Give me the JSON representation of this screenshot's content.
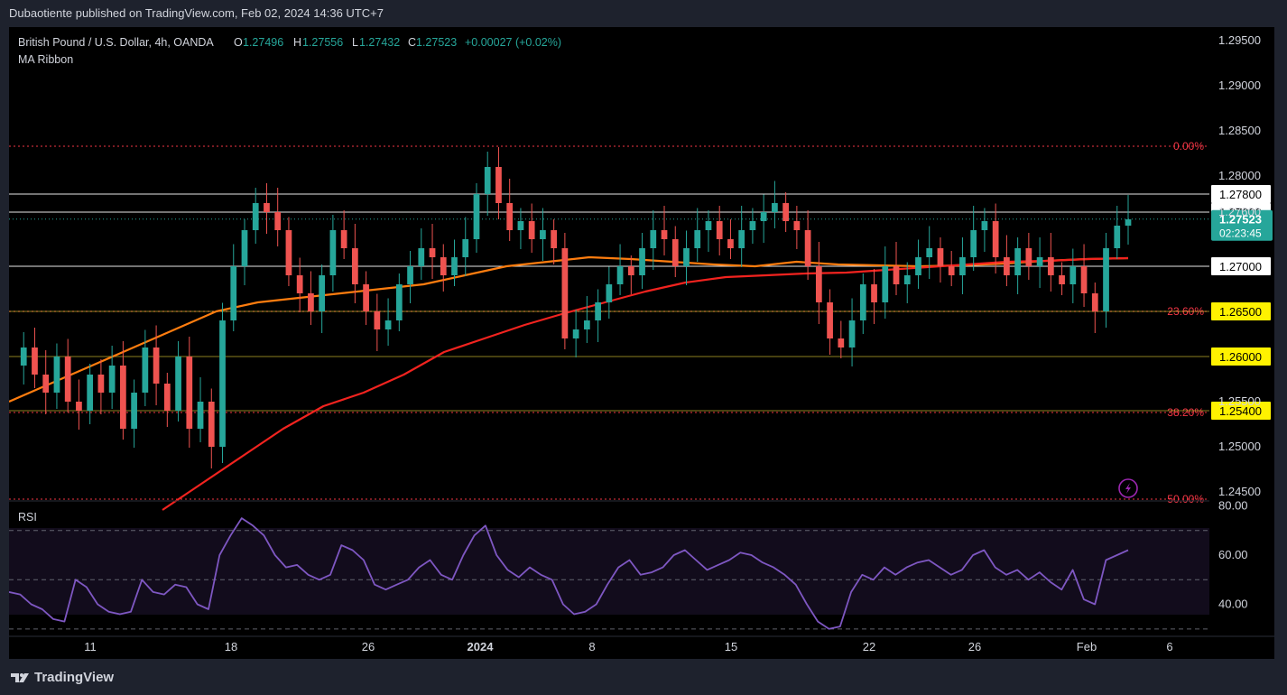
{
  "header": {
    "published_text": "Dubaotiente published on TradingView.com, Feb 02, 2024 14:36 UTC+7"
  },
  "legend": {
    "symbol": "British Pound / U.S. Dollar, 4h, OANDA",
    "o_label": "O",
    "o_value": "1.27496",
    "h_label": "H",
    "h_value": "1.27556",
    "l_label": "L",
    "l_value": "1.27432",
    "c_label": "C",
    "c_value": "1.27523",
    "change": "+0.00027 (+0.02%)",
    "indicator": "MA Ribbon"
  },
  "rsi_label": "RSI",
  "footer": {
    "brand": "TradingView"
  },
  "colors": {
    "up": "#26a69a",
    "down": "#ef5350",
    "ma_fast": "#ff7d0f",
    "ma_slow": "#f2231f",
    "rsi": "#7e57c2",
    "fib": "#f23645",
    "price_badge": "#26a69a"
  },
  "chart_data": [
    {
      "type": "candlestick",
      "title": "British Pound / U.S. Dollar, 4h, OANDA",
      "x_ticks": [
        "11",
        "18",
        "26",
        "2024",
        "8",
        "15",
        "22",
        "26",
        "Feb",
        "6"
      ],
      "y_ticks": [
        "1.29500",
        "1.29000",
        "1.28500",
        "1.28000",
        "1.27600",
        "1.25500",
        "1.25000",
        "1.24500"
      ],
      "ylim": [
        1.244,
        1.2965
      ],
      "horizontal_levels": [
        {
          "value": 1.278,
          "label": "1.27800",
          "style": "white-box"
        },
        {
          "value": 1.276,
          "label": "1.27600",
          "style": "white-box"
        },
        {
          "value": 1.27,
          "label": "1.27000",
          "style": "white-box"
        },
        {
          "value": 1.265,
          "label": "1.26500",
          "style": "yellow-box"
        },
        {
          "value": 1.26,
          "label": "1.26000",
          "style": "yellow-box"
        },
        {
          "value": 1.254,
          "label": "1.25400",
          "style": "yellow-box"
        }
      ],
      "fib_levels": [
        {
          "value": 1.2833,
          "label": "0.00%"
        },
        {
          "value": 1.265,
          "label": "23.60%"
        },
        {
          "value": 1.2538,
          "label": "38.20%"
        },
        {
          "value": 1.2442,
          "label": "50.00%"
        }
      ],
      "last_price": {
        "value": 1.27523,
        "label": "1.27523",
        "countdown": "02:23:45"
      },
      "series": [
        {
          "name": "price_path",
          "values": [
            1.259,
            1.261,
            1.258,
            1.256,
            1.26,
            1.255,
            1.254,
            1.258,
            1.256,
            1.259,
            1.252,
            1.256,
            1.261,
            1.257,
            1.254,
            1.26,
            1.252,
            1.255,
            1.25,
            1.264,
            1.27,
            1.274,
            1.277,
            1.276,
            1.274,
            1.269,
            1.267,
            1.265,
            1.269,
            1.274,
            1.272,
            1.268,
            1.265,
            1.263,
            1.264,
            1.268,
            1.27,
            1.272,
            1.271,
            1.269,
            1.271,
            1.273,
            1.278,
            1.281,
            1.277,
            1.274,
            1.275,
            1.273,
            1.274,
            1.272,
            1.262,
            1.263,
            1.264,
            1.266,
            1.268,
            1.27,
            1.269,
            1.272,
            1.274,
            1.273,
            1.27,
            1.272,
            1.274,
            1.275,
            1.273,
            1.272,
            1.274,
            1.275,
            1.276,
            1.277,
            1.275,
            1.274,
            1.27,
            1.266,
            1.262,
            1.261,
            1.264,
            1.268,
            1.266,
            1.27,
            1.268,
            1.269,
            1.271,
            1.272,
            1.27,
            1.269,
            1.271,
            1.274,
            1.275,
            1.271,
            1.269,
            1.272,
            1.27,
            1.271,
            1.269,
            1.268,
            1.27,
            1.267,
            1.265,
            1.272,
            1.2745,
            1.2752
          ]
        },
        {
          "name": "ma_fast",
          "values": [
            1.255,
            1.257,
            1.259,
            1.261,
            1.263,
            1.265,
            1.266,
            1.2665,
            1.267,
            1.2675,
            1.268,
            1.269,
            1.27,
            1.2705,
            1.271,
            1.2708,
            1.2705,
            1.2702,
            1.27,
            1.2705,
            1.2702,
            1.2701,
            1.27,
            1.2701,
            1.2703,
            1.2706,
            1.2708,
            1.2709
          ]
        },
        {
          "name": "ma_slow",
          "values": [
            1.243,
            1.246,
            1.249,
            1.252,
            1.2545,
            1.256,
            1.258,
            1.2605,
            1.262,
            1.2635,
            1.2648,
            1.266,
            1.2672,
            1.2682,
            1.2688,
            1.269,
            1.2692,
            1.2693,
            1.2696,
            1.2699,
            1.2702,
            1.2705,
            1.2706,
            1.2708,
            1.2709
          ]
        }
      ]
    },
    {
      "type": "line",
      "title": "RSI",
      "y_ticks": [
        "80.00",
        "60.00",
        "40.00"
      ],
      "ylim": [
        27,
        82
      ],
      "bands": [
        70,
        50,
        30
      ],
      "series": [
        {
          "name": "RSI",
          "values": [
            45,
            44,
            40,
            38,
            34,
            33,
            50,
            47,
            40,
            37,
            36,
            37,
            50,
            45,
            44,
            48,
            47,
            40,
            38,
            60,
            68,
            75,
            72,
            68,
            60,
            55,
            56,
            52,
            50,
            52,
            64,
            62,
            58,
            48,
            46,
            48,
            50,
            55,
            58,
            52,
            50,
            60,
            68,
            72,
            60,
            54,
            51,
            55,
            52,
            50,
            40,
            36,
            37,
            40,
            48,
            55,
            58,
            52,
            53,
            55,
            60,
            62,
            58,
            54,
            56,
            58,
            61,
            60,
            57,
            55,
            52,
            48,
            40,
            33,
            30,
            31,
            45,
            52,
            50,
            55,
            52,
            55,
            57,
            58,
            55,
            52,
            54,
            60,
            62,
            55,
            52,
            54,
            50,
            53,
            49,
            46,
            54,
            42,
            40,
            58,
            60,
            62
          ]
        }
      ]
    }
  ]
}
